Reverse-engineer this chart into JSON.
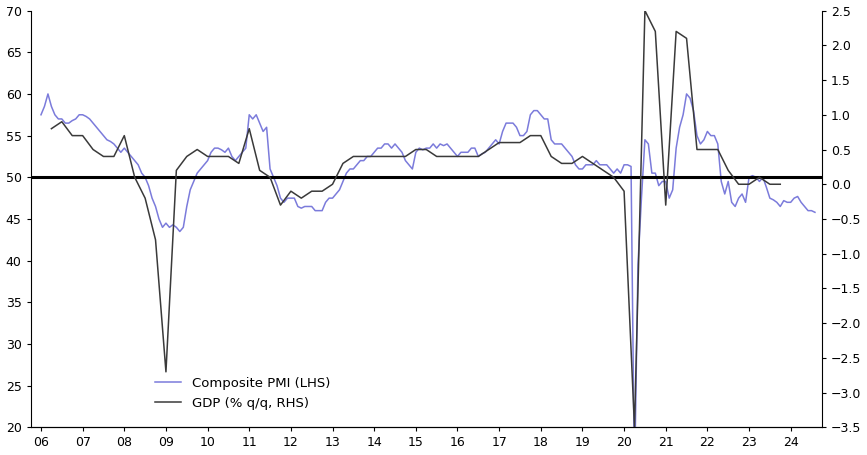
{
  "pmi_color": "#7b7bdb",
  "gdp_color": "#3a3a3a",
  "hline_color": "#000000",
  "ylim_lhs": [
    20,
    70
  ],
  "ylim_rhs": [
    -3.5,
    2.5
  ],
  "yticks_lhs": [
    20,
    25,
    30,
    35,
    40,
    45,
    50,
    55,
    60,
    65,
    70
  ],
  "yticks_rhs": [
    -3.5,
    -3.0,
    -2.5,
    -2.0,
    -1.5,
    -1.0,
    -0.5,
    0.0,
    0.5,
    1.0,
    1.5,
    2.0,
    2.5
  ],
  "xtick_labels": [
    "06",
    "07",
    "08",
    "09",
    "10",
    "11",
    "12",
    "13",
    "14",
    "15",
    "16",
    "17",
    "18",
    "19",
    "20",
    "21",
    "22",
    "23",
    "24"
  ],
  "pmi_x": [
    2006.0,
    2006.083,
    2006.167,
    2006.25,
    2006.333,
    2006.417,
    2006.5,
    2006.583,
    2006.667,
    2006.75,
    2006.833,
    2006.917,
    2007.0,
    2007.083,
    2007.167,
    2007.25,
    2007.333,
    2007.417,
    2007.5,
    2007.583,
    2007.667,
    2007.75,
    2007.833,
    2007.917,
    2008.0,
    2008.083,
    2008.167,
    2008.25,
    2008.333,
    2008.417,
    2008.5,
    2008.583,
    2008.667,
    2008.75,
    2008.833,
    2008.917,
    2009.0,
    2009.083,
    2009.167,
    2009.25,
    2009.333,
    2009.417,
    2009.5,
    2009.583,
    2009.667,
    2009.75,
    2009.833,
    2009.917,
    2010.0,
    2010.083,
    2010.167,
    2010.25,
    2010.333,
    2010.417,
    2010.5,
    2010.583,
    2010.667,
    2010.75,
    2010.833,
    2010.917,
    2011.0,
    2011.083,
    2011.167,
    2011.25,
    2011.333,
    2011.417,
    2011.5,
    2011.583,
    2011.667,
    2011.75,
    2011.833,
    2011.917,
    2012.0,
    2012.083,
    2012.167,
    2012.25,
    2012.333,
    2012.417,
    2012.5,
    2012.583,
    2012.667,
    2012.75,
    2012.833,
    2012.917,
    2013.0,
    2013.083,
    2013.167,
    2013.25,
    2013.333,
    2013.417,
    2013.5,
    2013.583,
    2013.667,
    2013.75,
    2013.833,
    2013.917,
    2014.0,
    2014.083,
    2014.167,
    2014.25,
    2014.333,
    2014.417,
    2014.5,
    2014.583,
    2014.667,
    2014.75,
    2014.833,
    2014.917,
    2015.0,
    2015.083,
    2015.167,
    2015.25,
    2015.333,
    2015.417,
    2015.5,
    2015.583,
    2015.667,
    2015.75,
    2015.833,
    2015.917,
    2016.0,
    2016.083,
    2016.167,
    2016.25,
    2016.333,
    2016.417,
    2016.5,
    2016.583,
    2016.667,
    2016.75,
    2016.833,
    2016.917,
    2017.0,
    2017.083,
    2017.167,
    2017.25,
    2017.333,
    2017.417,
    2017.5,
    2017.583,
    2017.667,
    2017.75,
    2017.833,
    2017.917,
    2018.0,
    2018.083,
    2018.167,
    2018.25,
    2018.333,
    2018.417,
    2018.5,
    2018.583,
    2018.667,
    2018.75,
    2018.833,
    2018.917,
    2019.0,
    2019.083,
    2019.167,
    2019.25,
    2019.333,
    2019.417,
    2019.5,
    2019.583,
    2019.667,
    2019.75,
    2019.833,
    2019.917,
    2020.0,
    2020.083,
    2020.167,
    2020.25,
    2020.333,
    2020.417,
    2020.5,
    2020.583,
    2020.667,
    2020.75,
    2020.833,
    2020.917,
    2021.0,
    2021.083,
    2021.167,
    2021.25,
    2021.333,
    2021.417,
    2021.5,
    2021.583,
    2021.667,
    2021.75,
    2021.833,
    2021.917,
    2022.0,
    2022.083,
    2022.167,
    2022.25,
    2022.333,
    2022.417,
    2022.5,
    2022.583,
    2022.667,
    2022.75,
    2022.833,
    2022.917,
    2023.0,
    2023.083,
    2023.167,
    2023.25,
    2023.333,
    2023.417,
    2023.5,
    2023.583,
    2023.667,
    2023.75,
    2023.833,
    2023.917,
    2024.0,
    2024.083,
    2024.167,
    2024.25,
    2024.333,
    2024.417,
    2024.5,
    2024.583
  ],
  "pmi_y": [
    57.5,
    58.5,
    60.0,
    58.5,
    57.5,
    57.0,
    57.0,
    56.5,
    56.5,
    56.8,
    57.0,
    57.5,
    57.5,
    57.3,
    57.0,
    56.5,
    56.0,
    55.5,
    55.0,
    54.5,
    54.3,
    54.0,
    53.5,
    53.0,
    53.5,
    53.0,
    52.5,
    52.0,
    51.5,
    50.5,
    50.0,
    49.0,
    47.5,
    46.5,
    45.0,
    44.0,
    44.5,
    44.0,
    44.3,
    44.0,
    43.5,
    44.0,
    46.5,
    48.5,
    49.5,
    50.5,
    51.0,
    51.5,
    52.0,
    53.0,
    53.5,
    53.5,
    53.3,
    53.0,
    53.5,
    52.5,
    52.0,
    52.5,
    53.0,
    53.5,
    57.5,
    57.0,
    57.5,
    56.5,
    55.5,
    56.0,
    51.0,
    50.0,
    49.0,
    47.5,
    47.0,
    47.5,
    47.5,
    47.5,
    46.5,
    46.3,
    46.5,
    46.5,
    46.5,
    46.0,
    46.0,
    46.0,
    47.0,
    47.5,
    47.5,
    48.0,
    48.5,
    49.5,
    50.5,
    51.0,
    51.0,
    51.5,
    52.0,
    52.0,
    52.5,
    52.5,
    53.0,
    53.5,
    53.5,
    54.0,
    54.0,
    53.5,
    54.0,
    53.5,
    53.0,
    52.0,
    51.5,
    51.0,
    53.0,
    53.5,
    53.3,
    53.5,
    53.5,
    54.0,
    53.5,
    54.0,
    53.8,
    54.0,
    53.5,
    53.0,
    52.5,
    53.0,
    53.0,
    53.0,
    53.5,
    53.5,
    52.5,
    52.8,
    53.0,
    53.5,
    54.0,
    54.5,
    54.0,
    55.5,
    56.5,
    56.5,
    56.5,
    56.0,
    55.0,
    55.0,
    55.5,
    57.5,
    58.0,
    58.0,
    57.5,
    57.0,
    57.0,
    54.5,
    54.0,
    54.0,
    54.0,
    53.5,
    53.0,
    52.5,
    51.5,
    51.0,
    51.0,
    51.5,
    51.5,
    51.5,
    52.0,
    51.5,
    51.5,
    51.5,
    51.0,
    50.5,
    51.0,
    50.5,
    51.5,
    51.5,
    51.3,
    13.5,
    39.5,
    47.5,
    54.5,
    54.0,
    50.5,
    50.5,
    49.0,
    49.5,
    49.5,
    47.5,
    48.5,
    53.5,
    56.0,
    57.5,
    60.0,
    59.5,
    58.0,
    55.0,
    54.0,
    54.5,
    55.5,
    55.0,
    55.0,
    54.0,
    49.5,
    48.0,
    49.5,
    47.0,
    46.5,
    47.5,
    48.0,
    47.0,
    50.0,
    50.2,
    50.0,
    49.5,
    50.0,
    48.8,
    47.5,
    47.3,
    47.0,
    46.5,
    47.2,
    47.0,
    47.0,
    47.5,
    47.7,
    47.0,
    46.5,
    46.0,
    46.0,
    45.8
  ],
  "gdp_x": [
    2006.25,
    2006.5,
    2006.75,
    2007.0,
    2007.25,
    2007.5,
    2007.75,
    2008.0,
    2008.25,
    2008.5,
    2008.75,
    2009.0,
    2009.25,
    2009.5,
    2009.75,
    2010.0,
    2010.25,
    2010.5,
    2010.75,
    2011.0,
    2011.25,
    2011.5,
    2011.75,
    2012.0,
    2012.25,
    2012.5,
    2012.75,
    2013.0,
    2013.25,
    2013.5,
    2013.75,
    2014.0,
    2014.25,
    2014.5,
    2014.75,
    2015.0,
    2015.25,
    2015.5,
    2015.75,
    2016.0,
    2016.25,
    2016.5,
    2016.75,
    2017.0,
    2017.25,
    2017.5,
    2017.75,
    2018.0,
    2018.25,
    2018.5,
    2018.75,
    2019.0,
    2019.25,
    2019.5,
    2019.75,
    2020.0,
    2020.25,
    2020.5,
    2020.75,
    2021.0,
    2021.25,
    2021.5,
    2021.75,
    2022.0,
    2022.25,
    2022.5,
    2022.75,
    2023.0,
    2023.25,
    2023.5,
    2023.75
  ],
  "gdp_y": [
    0.8,
    0.9,
    0.7,
    0.7,
    0.5,
    0.4,
    0.4,
    0.7,
    0.1,
    -0.2,
    -0.8,
    -2.7,
    0.2,
    0.4,
    0.5,
    0.4,
    0.4,
    0.4,
    0.3,
    0.8,
    0.2,
    0.1,
    -0.3,
    -0.1,
    -0.2,
    -0.1,
    -0.1,
    0.0,
    0.3,
    0.4,
    0.4,
    0.4,
    0.4,
    0.4,
    0.4,
    0.5,
    0.5,
    0.4,
    0.4,
    0.4,
    0.4,
    0.4,
    0.5,
    0.6,
    0.6,
    0.6,
    0.7,
    0.7,
    0.4,
    0.3,
    0.3,
    0.4,
    0.3,
    0.2,
    0.1,
    -0.1,
    -3.5,
    2.5,
    2.2,
    -0.3,
    2.2,
    2.1,
    0.5,
    0.5,
    0.5,
    0.2,
    0.0,
    0.0,
    0.1,
    0.0,
    0.0
  ]
}
